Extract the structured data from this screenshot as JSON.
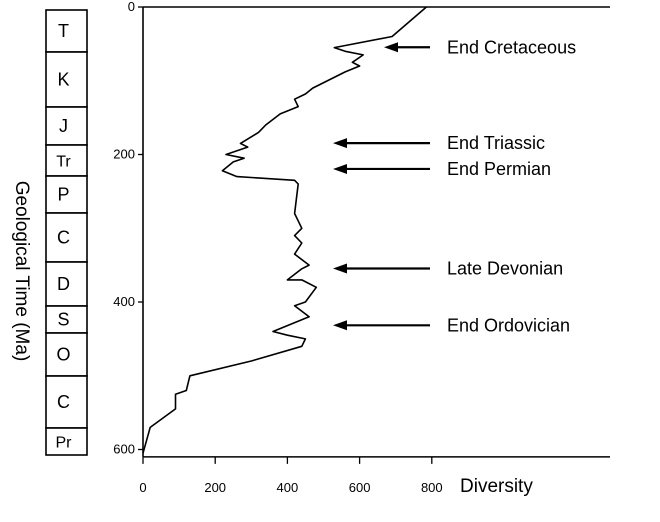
{
  "chart_data": {
    "type": "line",
    "xlabel": "Diversity",
    "ylabel": "Geological Time (Ma)",
    "xlim": [
      0,
      800
    ],
    "ylim": [
      0,
      610
    ],
    "y_inverted": true,
    "x_ticks": [
      0,
      200,
      400,
      600,
      800
    ],
    "y_ticks": [
      0,
      200,
      400,
      600
    ],
    "grid": false,
    "series": [
      {
        "name": "",
        "points": [
          [
            785,
            0
          ],
          [
            690,
            40
          ],
          [
            530,
            55
          ],
          [
            560,
            60
          ],
          [
            610,
            65
          ],
          [
            580,
            75
          ],
          [
            600,
            80
          ],
          [
            560,
            88
          ],
          [
            470,
            110
          ],
          [
            450,
            118
          ],
          [
            420,
            125
          ],
          [
            430,
            135
          ],
          [
            380,
            145
          ],
          [
            340,
            160
          ],
          [
            320,
            170
          ],
          [
            270,
            185
          ],
          [
            290,
            190
          ],
          [
            230,
            200
          ],
          [
            280,
            205
          ],
          [
            250,
            210
          ],
          [
            220,
            222
          ],
          [
            260,
            230
          ],
          [
            420,
            235
          ],
          [
            430,
            240
          ],
          [
            420,
            280
          ],
          [
            440,
            300
          ],
          [
            420,
            310
          ],
          [
            440,
            320
          ],
          [
            420,
            335
          ],
          [
            460,
            350
          ],
          [
            440,
            355
          ],
          [
            400,
            370
          ],
          [
            440,
            370
          ],
          [
            480,
            380
          ],
          [
            450,
            400
          ],
          [
            420,
            405
          ],
          [
            460,
            420
          ],
          [
            360,
            440
          ],
          [
            400,
            445
          ],
          [
            450,
            450
          ],
          [
            440,
            460
          ],
          [
            300,
            480
          ],
          [
            130,
            500
          ],
          [
            120,
            520
          ],
          [
            90,
            525
          ],
          [
            90,
            545
          ],
          [
            20,
            570
          ],
          [
            0,
            605
          ]
        ]
      }
    ],
    "periods": [
      "T",
      "K",
      "J",
      "Tr",
      "P",
      "C",
      "D",
      "S",
      "O",
      "C",
      "Pr"
    ],
    "annotations": [
      {
        "label": "End Cretaceous",
        "time": 60
      },
      {
        "label": "End Triassic",
        "time": 190
      },
      {
        "label": "End Permian",
        "time": 225
      },
      {
        "label": "Late Devonian",
        "time": 360
      },
      {
        "label": "End Ordovician",
        "time": 437
      }
    ]
  }
}
